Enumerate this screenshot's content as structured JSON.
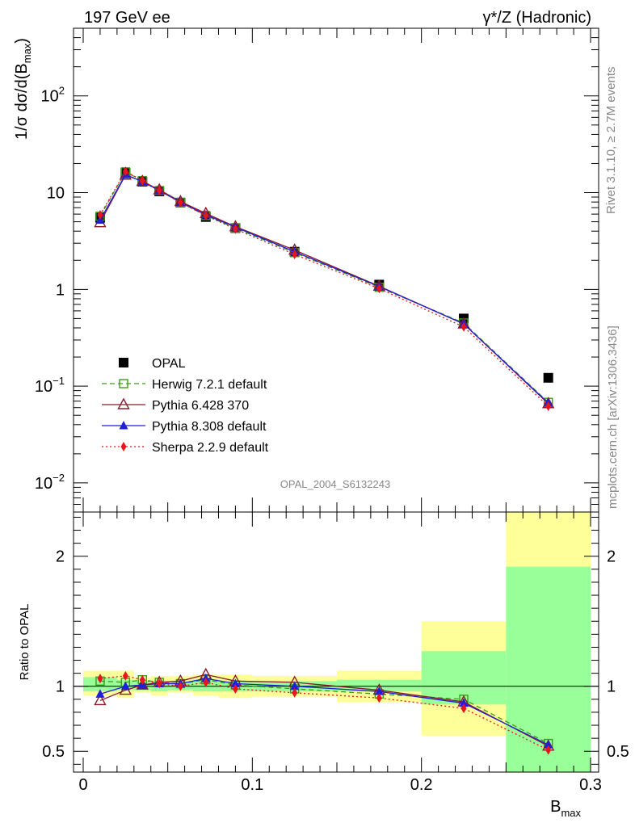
{
  "header": {
    "left": "197 GeV ee",
    "right": "γ*/Z (Hadronic)"
  },
  "side_labels": {
    "rivet": "Rivet 3.1.10, ≥ 2.7M events",
    "source": "mcplots.cern.ch [arXiv:1306.3436]"
  },
  "analysis_id": "OPAL_2004_S6132243",
  "colors": {
    "opal": "#000000",
    "herwig": "#3a9c1a",
    "pythia6": "#8b1a2a",
    "pythia8": "#1f1fd6",
    "sherpa": "#e8141e",
    "band_inner": "#99ff99",
    "band_outer": "#ffff99"
  },
  "chart_data": [
    {
      "type": "line",
      "panel": "main",
      "ylabel_main": "1/σ dσ/d(B",
      "ylabel_sub": "max",
      "ylabel_close": ")",
      "y_scale": "log",
      "xlim": [
        0,
        0.3
      ],
      "ylim": [
        0.005,
        500
      ],
      "y_ticks": [
        {
          "base": "10",
          "exp": "2",
          "value": 100
        },
        {
          "base": "10",
          "exp": "",
          "value": 10
        },
        {
          "base": "1",
          "exp": "",
          "value": 1
        },
        {
          "base": "10",
          "exp": "−1",
          "value": 0.1
        },
        {
          "base": "10",
          "exp": "−2",
          "value": 0.01
        }
      ],
      "x": [
        0.01,
        0.025,
        0.035,
        0.045,
        0.0575,
        0.0725,
        0.09,
        0.125,
        0.175,
        0.225,
        0.275
      ],
      "series": [
        {
          "name": "OPAL",
          "key": "opal",
          "marker": "square-filled",
          "line": "none",
          "values": [
            5.5,
            16.0,
            13.0,
            10.3,
            7.9,
            5.6,
            4.3,
            2.45,
            1.12,
            0.5,
            0.122
          ]
        },
        {
          "name": "Herwig 7.2.1 default",
          "key": "herwig",
          "marker": "square-open",
          "line": "dashed",
          "values": [
            5.7,
            16.4,
            13.3,
            10.5,
            7.9,
            5.8,
            4.3,
            2.4,
            1.05,
            0.45,
            0.068
          ]
        },
        {
          "name": "Pythia 6.428 370",
          "key": "pythia6",
          "marker": "triangle-open",
          "line": "solid",
          "values": [
            4.9,
            15.2,
            13.1,
            10.7,
            8.1,
            6.1,
            4.45,
            2.55,
            1.08,
            0.44,
            0.066
          ]
        },
        {
          "name": "Pythia 8.308 default",
          "key": "pythia8",
          "marker": "triangle-filled",
          "line": "solid",
          "values": [
            5.2,
            15.4,
            13.0,
            10.5,
            8.0,
            5.9,
            4.4,
            2.45,
            1.07,
            0.44,
            0.067
          ]
        },
        {
          "name": "Sherpa 2.2.9 default",
          "key": "sherpa",
          "marker": "diamond-filled",
          "line": "dotted",
          "values": [
            5.9,
            16.6,
            13.3,
            10.5,
            7.9,
            5.8,
            4.2,
            2.3,
            1.02,
            0.41,
            0.062
          ]
        }
      ]
    },
    {
      "type": "line",
      "panel": "ratio",
      "ylabel": "Ratio to OPAL",
      "xlabel_main": "B",
      "xlabel_sub": "max",
      "xlim": [
        0,
        0.3
      ],
      "ylim": [
        0.34,
        2.34
      ],
      "x_ticks": [
        "0",
        "0.1",
        "0.2",
        "0.3"
      ],
      "y_ticks": [
        "0.5",
        "1",
        "2"
      ],
      "reference": 1,
      "bands": [
        {
          "x0": 0.0,
          "x1": 0.02,
          "inner": [
            0.96,
            1.07
          ],
          "outer": [
            0.93,
            1.12
          ]
        },
        {
          "x0": 0.02,
          "x1": 0.03,
          "inner": [
            0.97,
            1.05
          ],
          "outer": [
            0.91,
            1.12
          ]
        },
        {
          "x0": 0.03,
          "x1": 0.04,
          "inner": [
            0.97,
            1.04
          ],
          "outer": [
            0.95,
            1.07
          ]
        },
        {
          "x0": 0.04,
          "x1": 0.05,
          "inner": [
            0.96,
            1.04
          ],
          "outer": [
            0.93,
            1.08
          ]
        },
        {
          "x0": 0.05,
          "x1": 0.065,
          "inner": [
            0.97,
            1.04
          ],
          "outer": [
            0.95,
            1.08
          ]
        },
        {
          "x0": 0.065,
          "x1": 0.08,
          "inner": [
            0.96,
            1.05
          ],
          "outer": [
            0.93,
            1.09
          ]
        },
        {
          "x0": 0.08,
          "x1": 0.1,
          "inner": [
            0.96,
            1.04
          ],
          "outer": [
            0.91,
            1.09
          ]
        },
        {
          "x0": 0.1,
          "x1": 0.15,
          "inner": [
            0.96,
            1.04
          ],
          "outer": [
            0.92,
            1.08
          ]
        },
        {
          "x0": 0.15,
          "x1": 0.2,
          "inner": [
            0.96,
            1.05
          ],
          "outer": [
            0.88,
            1.12
          ]
        },
        {
          "x0": 0.2,
          "x1": 0.25,
          "inner": [
            0.86,
            1.27
          ],
          "outer": [
            0.62,
            1.5
          ]
        },
        {
          "x0": 0.25,
          "x1": 0.3,
          "inner": [
            0.34,
            1.92
          ],
          "outer": [
            0.34,
            2.34
          ]
        }
      ],
      "series": [
        {
          "key": "herwig",
          "marker": "square-open",
          "line": "dashed",
          "values": [
            1.04,
            1.03,
            1.05,
            1.03,
            1.02,
            1.05,
            1.01,
            0.98,
            0.94,
            0.9,
            0.56
          ]
        },
        {
          "key": "pythia6",
          "marker": "triangle-open",
          "line": "solid",
          "values": [
            0.89,
            0.97,
            1.01,
            1.03,
            1.04,
            1.09,
            1.04,
            1.03,
            0.97,
            0.88,
            0.54
          ]
        },
        {
          "key": "pythia8",
          "marker": "triangle-filled",
          "line": "solid",
          "values": [
            0.94,
            1.0,
            1.01,
            1.02,
            1.02,
            1.06,
            1.02,
            1.0,
            0.96,
            0.87,
            0.55
          ]
        },
        {
          "key": "sherpa",
          "marker": "diamond-filled",
          "line": "dotted",
          "values": [
            1.06,
            1.08,
            1.05,
            1.02,
            1.0,
            1.03,
            0.98,
            0.95,
            0.91,
            0.83,
            0.51
          ]
        }
      ]
    }
  ]
}
